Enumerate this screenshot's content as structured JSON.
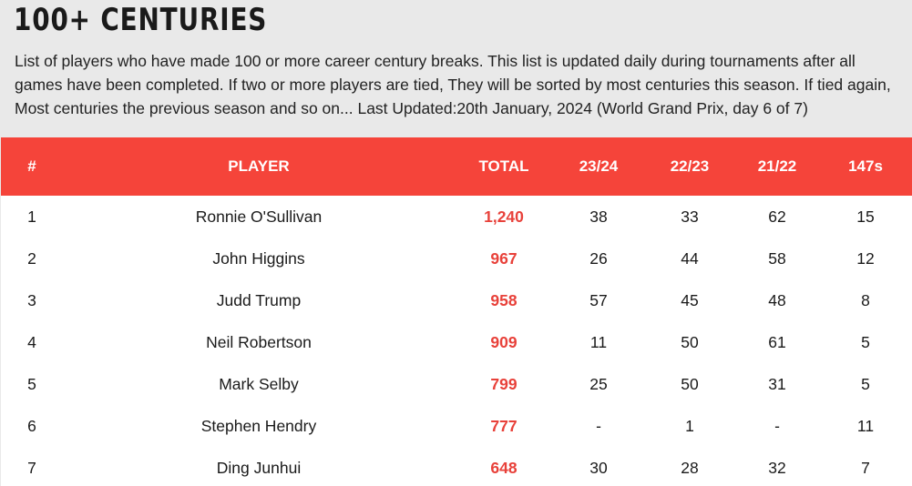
{
  "page": {
    "title": "100+ CENTURIES",
    "description": "List of players who have made 100 or more career century breaks. This list is updated daily during tournaments after all games have been completed. If two or more players are tied, They will be sorted by most centuries this season. If tied again, Most centuries the previous season and so on... Last Updated:20th January, 2024 (World Grand Prix, day 6 of 7)"
  },
  "table": {
    "headers": {
      "rank": "#",
      "player": "PLAYER",
      "total": "TOTAL",
      "s1": "23/24",
      "s2": "22/23",
      "s3": "21/22",
      "max": "147s"
    },
    "rows": [
      {
        "rank": "1",
        "player": "Ronnie O'Sullivan",
        "total": "1,240",
        "s1": "38",
        "s2": "33",
        "s3": "62",
        "max": "15"
      },
      {
        "rank": "2",
        "player": "John Higgins",
        "total": "967",
        "s1": "26",
        "s2": "44",
        "s3": "58",
        "max": "12"
      },
      {
        "rank": "3",
        "player": "Judd Trump",
        "total": "958",
        "s1": "57",
        "s2": "45",
        "s3": "48",
        "max": "8"
      },
      {
        "rank": "4",
        "player": "Neil Robertson",
        "total": "909",
        "s1": "11",
        "s2": "50",
        "s3": "61",
        "max": "5"
      },
      {
        "rank": "5",
        "player": "Mark Selby",
        "total": "799",
        "s1": "25",
        "s2": "50",
        "s3": "31",
        "max": "5"
      },
      {
        "rank": "6",
        "player": "Stephen Hendry",
        "total": "777",
        "s1": "-",
        "s2": "1",
        "s3": "-",
        "max": "11"
      },
      {
        "rank": "7",
        "player": "Ding Junhui",
        "total": "648",
        "s1": "30",
        "s2": "28",
        "s3": "32",
        "max": "7"
      }
    ]
  },
  "colors": {
    "header_bg": "#f5443a",
    "total_text": "#e8413a",
    "page_bg": "#e9e9e9"
  }
}
